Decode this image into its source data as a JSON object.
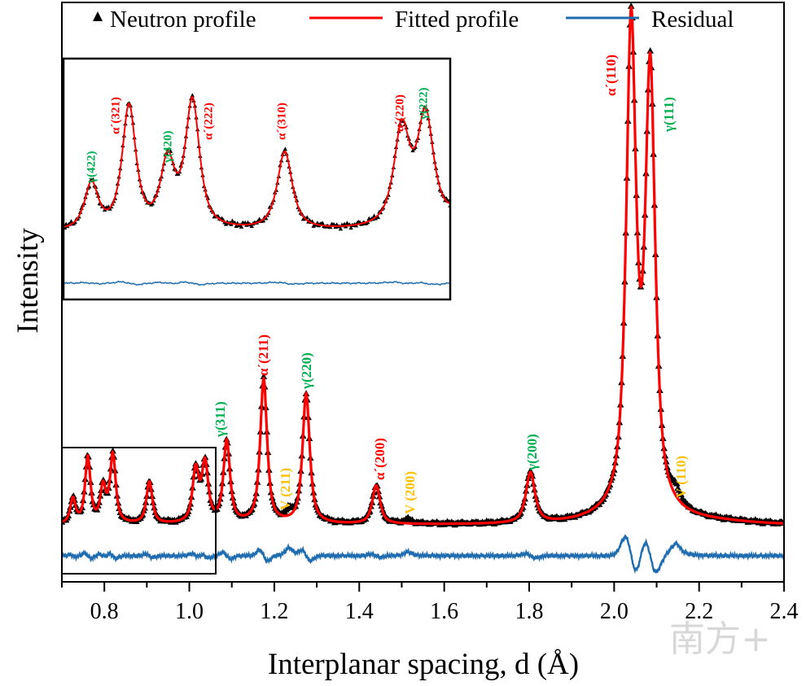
{
  "chart_data": {
    "type": "line",
    "xlabel": "Interplanar spacing, d (Å)",
    "ylabel": "Intensity",
    "xlim": [
      0.7,
      2.4
    ],
    "xticks": [
      "0.8",
      "1.0",
      "1.2",
      "1.4",
      "1.6",
      "1.8",
      "2.0",
      "2.2",
      "2.4"
    ],
    "yticks": [],
    "grid": false,
    "legend": {
      "position": "top",
      "entries": [
        {
          "name": "Neutron profile",
          "marker": "triangle",
          "color": "#000000"
        },
        {
          "name": "Fitted profile",
          "line": "solid",
          "color": "#ff0000"
        },
        {
          "name": "Residual",
          "line": "solid",
          "color": "#1f6db0"
        }
      ]
    },
    "phase_colors": {
      "alpha_prime": "#ff0000",
      "gamma": "#00b050",
      "V": "#ffc000"
    },
    "peaks": [
      {
        "d": 0.726,
        "intensity": 5.1,
        "label": "γ(422)",
        "phase": "gamma"
      },
      {
        "d": 0.761,
        "intensity": 13.7,
        "label": "α´(321)",
        "phase": "alpha_prime"
      },
      {
        "d": 0.797,
        "intensity": 7.3,
        "label": "γ(420)",
        "phase": "gamma"
      },
      {
        "d": 0.82,
        "intensity": 14.2,
        "label": "α´(222)",
        "phase": "alpha_prime"
      },
      {
        "d": 0.906,
        "intensity": 8.7,
        "label": "α´(310)",
        "phase": "alpha_prime"
      },
      {
        "d": 1.015,
        "intensity": 10.8,
        "label": "α´(220)",
        "phase": "alpha_prime"
      },
      {
        "d": 1.037,
        "intensity": 12.1,
        "label": "γ(222)",
        "phase": "gamma"
      },
      {
        "d": 1.088,
        "intensity": 17,
        "label": "γ(311)",
        "phase": "gamma"
      },
      {
        "d": 1.175,
        "intensity": 30,
        "label": "α´(211)",
        "phase": "alpha_prime"
      },
      {
        "d": 1.235,
        "intensity": 1.7,
        "label": "V (211)",
        "phase": "V"
      },
      {
        "d": 1.275,
        "intensity": 27,
        "label": "γ(220)",
        "phase": "gamma"
      },
      {
        "d": 1.44,
        "intensity": 8,
        "label": "α´(200)",
        "phase": "alpha_prime"
      },
      {
        "d": 1.515,
        "intensity": 0.8,
        "label": "V (200)",
        "phase": "V"
      },
      {
        "d": 1.803,
        "intensity": 10.5,
        "label": "γ(200)",
        "phase": "gamma"
      },
      {
        "d": 2.04,
        "intensity": 100,
        "label": "α´(110)",
        "phase": "alpha_prime"
      },
      {
        "d": 2.085,
        "intensity": 90,
        "label": "γ(111)",
        "phase": "gamma"
      },
      {
        "d": 2.145,
        "intensity": 2.5,
        "label": "V (110)",
        "phase": "V"
      }
    ],
    "inset": {
      "xlim": [
        0.7,
        1.06
      ]
    }
  },
  "watermark": "南方+"
}
